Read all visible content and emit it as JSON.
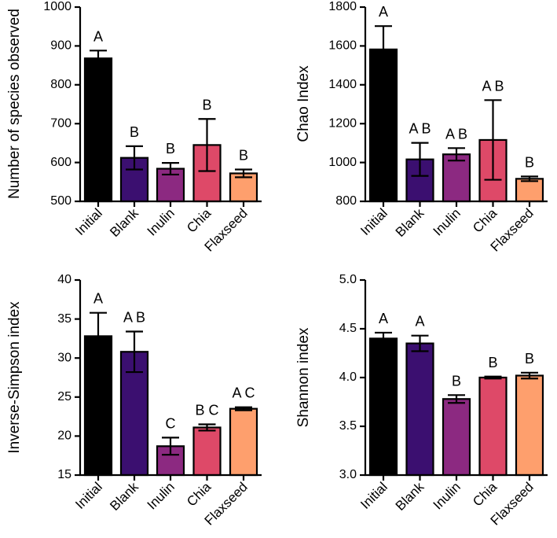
{
  "chart_data": [
    {
      "type": "bar",
      "title": "",
      "xlabel": "",
      "ylabel": "Number of species observed",
      "ylim": [
        500,
        1000
      ],
      "yticks": [
        500,
        600,
        700,
        800,
        900,
        1000
      ],
      "categories": [
        "Initial",
        "Blank",
        "Inulin",
        "Chia",
        "Flaxseed"
      ],
      "values": [
        868,
        612,
        584,
        645,
        572
      ],
      "errors": [
        20,
        30,
        15,
        67,
        10
      ],
      "significance": [
        "A",
        "B",
        "B",
        "B",
        "B"
      ]
    },
    {
      "type": "bar",
      "title": "",
      "xlabel": "",
      "ylabel": "Chao Index",
      "ylim": [
        800,
        1800
      ],
      "yticks": [
        800,
        1000,
        1200,
        1400,
        1600,
        1800
      ],
      "categories": [
        "Initial",
        "Blank",
        "Inulin",
        "Chia",
        "Flaxseed"
      ],
      "values": [
        1582,
        1016,
        1042,
        1116,
        916
      ],
      "errors": [
        120,
        85,
        32,
        205,
        12
      ],
      "significance": [
        "A",
        "A B",
        "A B",
        "A B",
        "B"
      ]
    },
    {
      "type": "bar",
      "title": "",
      "xlabel": "",
      "ylabel": "Inverse-Simpson index",
      "ylim": [
        15,
        40
      ],
      "yticks": [
        15,
        20,
        25,
        30,
        35,
        40
      ],
      "categories": [
        "Initial",
        "Blank",
        "Inulin",
        "Chia",
        "Flaxseed"
      ],
      "values": [
        32.8,
        30.8,
        18.7,
        21.1,
        23.5
      ],
      "errors": [
        3.0,
        2.6,
        1.1,
        0.4,
        0.2
      ],
      "significance": [
        "A",
        "A B",
        "C",
        "B C",
        "A C"
      ]
    },
    {
      "type": "bar",
      "title": "",
      "xlabel": "",
      "ylabel": "Shannon index",
      "ylim": [
        3.0,
        5.0
      ],
      "yticks": [
        "3.0",
        "3.5",
        "4.0",
        "4.5",
        "5.0"
      ],
      "categories": [
        "Initial",
        "Blank",
        "Inulin",
        "Chia",
        "Flaxseed"
      ],
      "values": [
        4.4,
        4.35,
        3.78,
        4.0,
        4.02
      ],
      "errors": [
        0.06,
        0.08,
        0.04,
        0.01,
        0.03
      ],
      "significance": [
        "A",
        "A",
        "B",
        "B",
        "B"
      ]
    }
  ],
  "colors": {
    "bars": [
      "#000000",
      "#3b0f70",
      "#8c2981",
      "#de4968",
      "#fe9f6d"
    ],
    "axis": "#000000"
  }
}
